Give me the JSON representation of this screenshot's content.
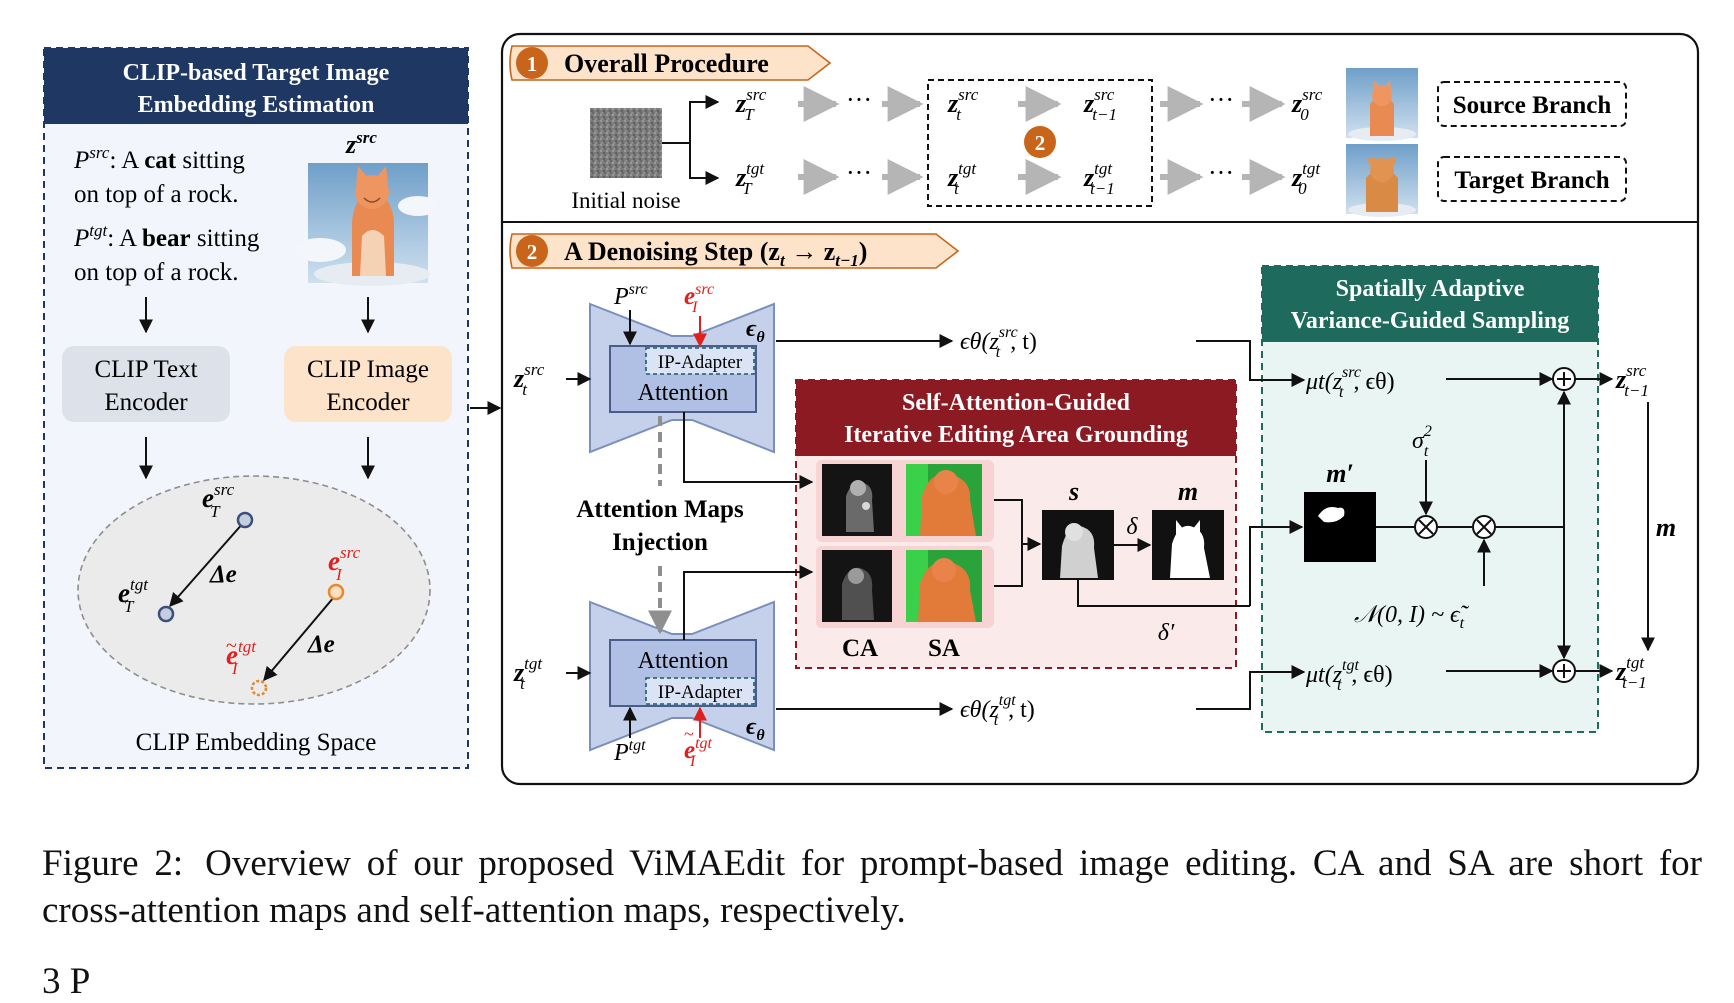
{
  "left_panel": {
    "title_line1": "CLIP-based Target Image",
    "title_line2": "Embedding Estimation",
    "prompt_src_label": "P",
    "prompt_src_sup": "src",
    "prompt_src_text_a": ": A ",
    "prompt_src_bold": "cat",
    "prompt_src_text_b": " sitting",
    "prompt_src_line2": "on top of a rock.",
    "prompt_tgt_label": "P",
    "prompt_tgt_sup": "tgt",
    "prompt_tgt_text_a": ": A ",
    "prompt_tgt_bold": "bear",
    "prompt_tgt_text_b": " sitting",
    "prompt_tgt_line2": "on top of a rock.",
    "image_label": "z",
    "image_label_sup": "src",
    "text_encoder_line1": "CLIP Text",
    "text_encoder_line2": "Encoder",
    "image_encoder_line1": "CLIP Image",
    "image_encoder_line2": "Encoder",
    "space_label": "CLIP Embedding Space",
    "e_T_src": "e",
    "e_T_src_sub": "T",
    "e_T_src_sup": "src",
    "e_T_tgt_sub": "T",
    "e_T_tgt_sup": "tgt",
    "e_I_src_sub": "I",
    "e_I_src_sup": "src",
    "e_I_tgt_sub": "I",
    "e_I_tgt_sup": "tgt",
    "delta_e": "Δe"
  },
  "overall": {
    "step_number": "1",
    "title": "Overall Procedure",
    "noise_label": "Initial noise",
    "ellipsis": "···",
    "step_badge": "2",
    "source_branch": "Source Branch",
    "target_branch": "Target Branch",
    "z": "z",
    "sub_T": "T",
    "sub_t": "t",
    "sub_tm1": "t−1",
    "sub_0": "0",
    "sup_src": "src",
    "sup_tgt": "tgt"
  },
  "denoise": {
    "step_number": "2",
    "title": "A Denoising Step (z",
    "title_sub_t": "t",
    "title_arrow": " → z",
    "title_sub_tm1": "t−1",
    "title_close": ")",
    "attention": "Attention",
    "ip_adapter": "IP-Adapter",
    "eps_theta": "ϵ",
    "theta": "θ",
    "injection_line1": "Attention Maps",
    "injection_line2": "Injection",
    "eps_src_out": "ϵθ(z",
    "eps_src_out_sup": "src",
    "eps_src_out_sub": "t",
    "eps_out_tail": ", t)",
    "eps_tgt_out_sup": "tgt",
    "grounding_line1": "Self-Attention-Guided",
    "grounding_line2": "Iterative Editing Area Grounding",
    "ca_label": "CA",
    "sa_label": "SA",
    "s_label": "s",
    "m_label": "m",
    "delta": "δ",
    "delta_prime": "δ′",
    "sampling_line1": "Spatially Adaptive",
    "sampling_line2": "Variance-Guided Sampling",
    "mu_src": "μt(z",
    "mu_tail": ", ϵθ)",
    "m_prime": "m′",
    "sigma": "σ",
    "sigma_sup": "2",
    "sigma_sub": "t",
    "noise_dist": "𝒩(0, I) ~ ϵ̃",
    "noise_dist_sub": "t",
    "m_side": "m",
    "z_out": "z",
    "z_out_sub": "t−1",
    "z_in_sub": "t"
  },
  "caption": {
    "label": "Figure 2:",
    "text": "Overview of our proposed ViMAEdit for prompt-based image editing. CA and SA are short for cross-attention maps and self-attention maps, respectively."
  },
  "section_peek": "3     P",
  "colors": {
    "navy": "#1f3763",
    "maroon": "#8b1a22",
    "teal": "#1e6a5c",
    "orange_badge": "#c9651b",
    "peach": "#fde3c9",
    "unet_blue": "#c5d1ea",
    "gray_arrow": "#b5b5b5",
    "red_text": "#e0201d"
  }
}
